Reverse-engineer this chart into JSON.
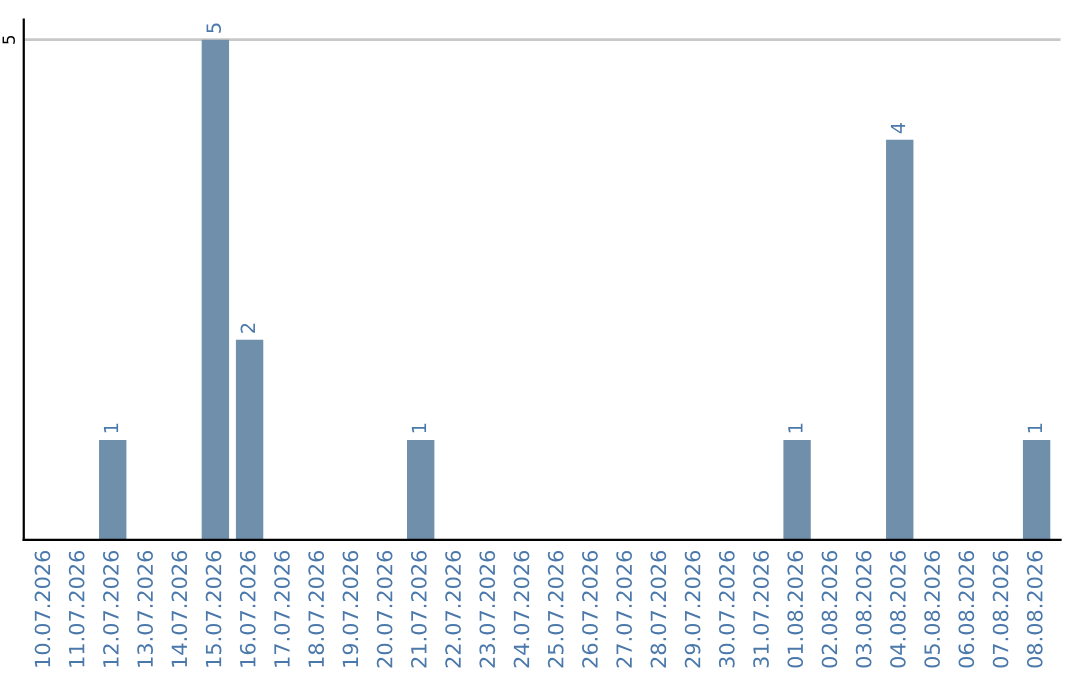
{
  "chart_data": {
    "type": "bar",
    "categories": [
      "10.07.2026",
      "11.07.2026",
      "12.07.2026",
      "13.07.2026",
      "14.07.2026",
      "15.07.2026",
      "16.07.2026",
      "17.07.2026",
      "18.07.2026",
      "19.07.2026",
      "20.07.2026",
      "21.07.2026",
      "22.07.2026",
      "23.07.2026",
      "24.07.2026",
      "25.07.2026",
      "26.07.2026",
      "27.07.2026",
      "28.07.2026",
      "29.07.2026",
      "30.07.2026",
      "31.07.2026",
      "01.08.2026",
      "02.08.2026",
      "03.08.2026",
      "04.08.2026",
      "05.08.2026",
      "06.08.2026",
      "07.08.2026",
      "08.08.2026"
    ],
    "values": [
      0,
      0,
      1,
      0,
      0,
      5,
      2,
      0,
      0,
      0,
      0,
      1,
      0,
      0,
      0,
      0,
      0,
      0,
      0,
      0,
      0,
      0,
      1,
      0,
      0,
      4,
      0,
      0,
      0,
      1
    ],
    "value_labels": [
      null,
      null,
      "1",
      null,
      null,
      "5",
      "2",
      null,
      null,
      null,
      null,
      "1",
      null,
      null,
      null,
      null,
      null,
      null,
      null,
      null,
      null,
      null,
      "1",
      null,
      null,
      "4",
      null,
      null,
      null,
      "1"
    ],
    "color": "#6f8fab",
    "ylim": [
      0,
      5.2
    ],
    "yticks": [
      5
    ],
    "grid": "y"
  }
}
